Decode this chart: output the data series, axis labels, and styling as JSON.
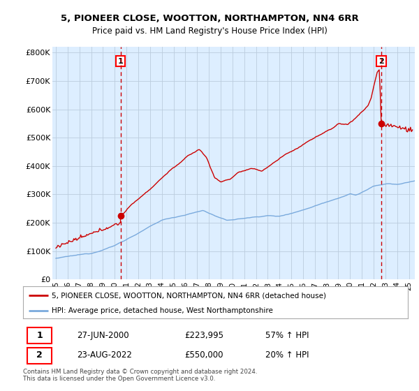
{
  "title": "5, PIONEER CLOSE, WOOTTON, NORTHAMPTON, NN4 6RR",
  "subtitle": "Price paid vs. HM Land Registry's House Price Index (HPI)",
  "ylabel_ticks": [
    "£0",
    "£100K",
    "£200K",
    "£300K",
    "£400K",
    "£500K",
    "£600K",
    "£700K",
    "£800K"
  ],
  "ytick_vals": [
    0,
    100000,
    200000,
    300000,
    400000,
    500000,
    600000,
    700000,
    800000
  ],
  "ylim": [
    0,
    820000
  ],
  "xlim_start": 1994.7,
  "xlim_end": 2025.5,
  "sale1_year": 2000.49,
  "sale1_price": 223995,
  "sale2_year": 2022.645,
  "sale2_price": 550000,
  "sale1_label": "1",
  "sale2_label": "2",
  "sale1_date": "27-JUN-2000",
  "sale1_amount": "£223,995",
  "sale1_hpi": "57% ↑ HPI",
  "sale2_date": "23-AUG-2022",
  "sale2_amount": "£550,000",
  "sale2_hpi": "20% ↑ HPI",
  "legend_line1": "5, PIONEER CLOSE, WOOTTON, NORTHAMPTON, NN4 6RR (detached house)",
  "legend_line2": "HPI: Average price, detached house, West Northamptonshire",
  "footer": "Contains HM Land Registry data © Crown copyright and database right 2024.\nThis data is licensed under the Open Government Licence v3.0.",
  "property_color": "#cc0000",
  "hpi_color": "#7aaadd",
  "background_color": "#ffffff",
  "chart_bg_color": "#ddeeff",
  "grid_color": "#bbccdd",
  "xtick_labels": [
    "95",
    "96",
    "97",
    "98",
    "99",
    "00",
    "01",
    "02",
    "03",
    "04",
    "05",
    "06",
    "07",
    "08",
    "09",
    "10",
    "11",
    "12",
    "13",
    "14",
    "15",
    "16",
    "17",
    "18",
    "19",
    "20",
    "21",
    "22",
    "23",
    "24",
    "25"
  ],
  "xtick_vals": [
    1995,
    1996,
    1997,
    1998,
    1999,
    2000,
    2001,
    2002,
    2003,
    2004,
    2005,
    2006,
    2007,
    2008,
    2009,
    2010,
    2011,
    2012,
    2013,
    2014,
    2015,
    2016,
    2017,
    2018,
    2019,
    2020,
    2021,
    2022,
    2023,
    2024,
    2025
  ]
}
